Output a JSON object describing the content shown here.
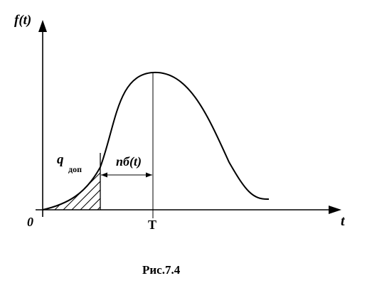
{
  "diagram": {
    "y_axis_label": "f(t)",
    "x_axis_label": "t",
    "origin_label": "0",
    "peak_label": "T",
    "shaded_area_label_main": "q",
    "shaded_area_label_sub": "доп",
    "interval_label": "nб(t)",
    "caption": "Рис.7.4",
    "colors": {
      "ink": "#000000",
      "background": "#ffffff"
    }
  }
}
